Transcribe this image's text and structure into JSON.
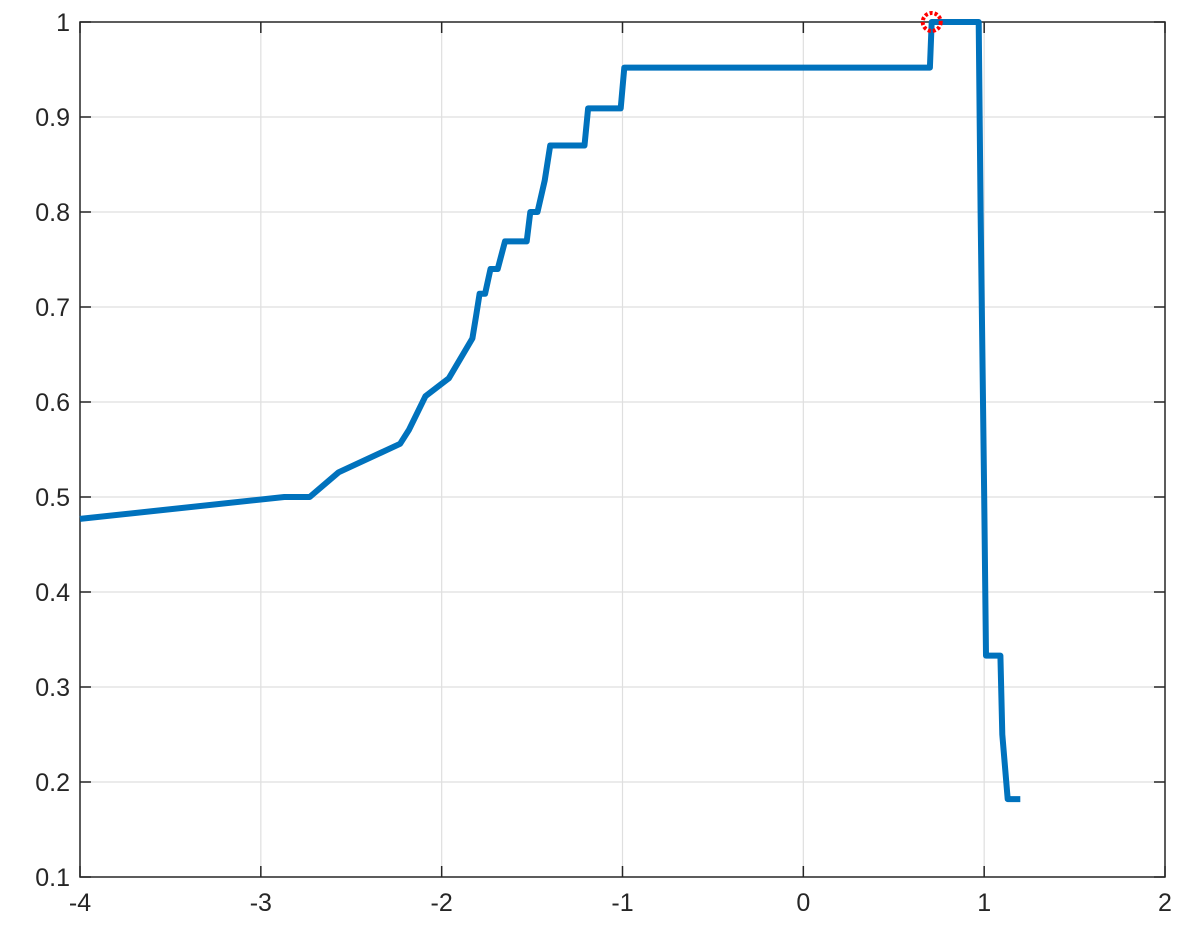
{
  "chart_data": {
    "type": "line",
    "title": "",
    "xlabel": "",
    "ylabel": "",
    "xlim": [
      -4,
      2
    ],
    "ylim": [
      0.1,
      1
    ],
    "xticks": [
      "-4",
      "-3",
      "-2",
      "-1",
      "0",
      "1",
      "2"
    ],
    "yticks": [
      "0.1",
      "0.2",
      "0.3",
      "0.4",
      "0.5",
      "0.6",
      "0.7",
      "0.8",
      "0.9",
      "1"
    ],
    "grid": true,
    "series": [
      {
        "color": "#0072bd",
        "x": [
          -4.0,
          -2.87,
          -2.73,
          -2.57,
          -2.23,
          -2.18,
          -2.09,
          -1.96,
          -1.83,
          -1.81,
          -1.79,
          -1.76,
          -1.73,
          -1.69,
          -1.65,
          -1.62,
          -1.53,
          -1.51,
          -1.47,
          -1.43,
          -1.4,
          -1.38,
          -1.21,
          -1.19,
          -1.01,
          -0.99,
          0.7,
          0.71,
          0.73,
          0.97,
          0.98,
          1.0,
          1.01,
          1.09,
          1.1,
          1.13,
          1.14,
          1.2
        ],
        "y": [
          0.477,
          0.5,
          0.5,
          0.526,
          0.556,
          0.571,
          0.606,
          0.625,
          0.667,
          0.69,
          0.714,
          0.714,
          0.74,
          0.74,
          0.769,
          0.769,
          0.769,
          0.8,
          0.8,
          0.833,
          0.87,
          0.87,
          0.87,
          0.909,
          0.909,
          0.952,
          0.952,
          1.0,
          1.0,
          1.0,
          0.8,
          0.5,
          0.333,
          0.333,
          0.25,
          0.182,
          0.182,
          0.182
        ]
      }
    ],
    "marker": {
      "x": 0.71,
      "y": 1.0,
      "color": "#ff0000"
    }
  }
}
